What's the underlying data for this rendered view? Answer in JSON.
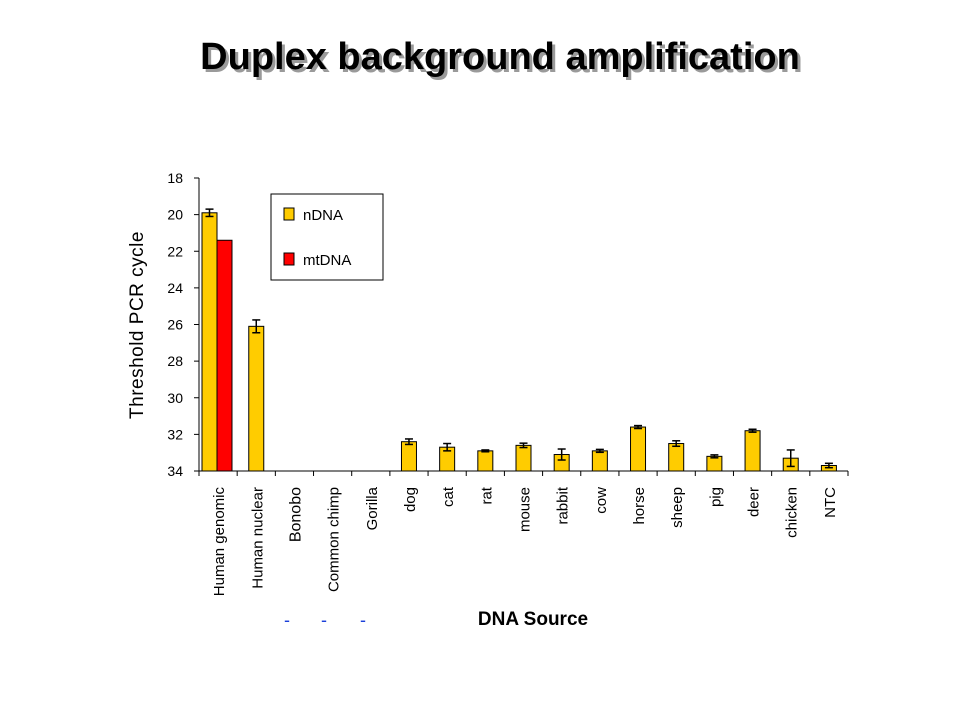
{
  "chart_data": {
    "type": "bar",
    "title": "Duplex background amplification",
    "xlabel": "DNA Source",
    "ylabel": "Threshold PCR cycle",
    "ylim": [
      18,
      34
    ],
    "y_inverted": true,
    "yticks": [
      "18",
      "20",
      "22",
      "24",
      "26",
      "28",
      "30",
      "32",
      "34"
    ],
    "grid": false,
    "legend_position": "top-left inside plot",
    "categories": [
      "Human genomic",
      "Human nuclear",
      "Bonobo",
      "Common chimp",
      "Gorilla",
      "dog",
      "cat",
      "rat",
      "mouse",
      "rabbit",
      "cow",
      "horse",
      "sheep",
      "pig",
      "deer",
      "chicken",
      "NTC"
    ],
    "series": [
      {
        "name": "nDNA",
        "color": "#FFCC00",
        "values": [
          19.9,
          26.1,
          null,
          null,
          null,
          32.4,
          32.7,
          32.9,
          32.6,
          33.1,
          32.9,
          31.6,
          32.5,
          33.2,
          31.8,
          33.3,
          33.7
        ],
        "errors": [
          0.2,
          0.35,
          null,
          null,
          null,
          0.15,
          0.2,
          0.05,
          0.12,
          0.3,
          0.08,
          0.08,
          0.15,
          0.08,
          0.08,
          0.45,
          0.12
        ]
      },
      {
        "name": "mtDNA",
        "color": "#FF0000",
        "values": [
          21.4,
          null,
          null,
          null,
          null,
          null,
          null,
          null,
          null,
          null,
          null,
          null,
          null,
          null,
          null,
          null,
          null
        ]
      }
    ],
    "marks": [
      "-",
      "-",
      "-"
    ]
  }
}
